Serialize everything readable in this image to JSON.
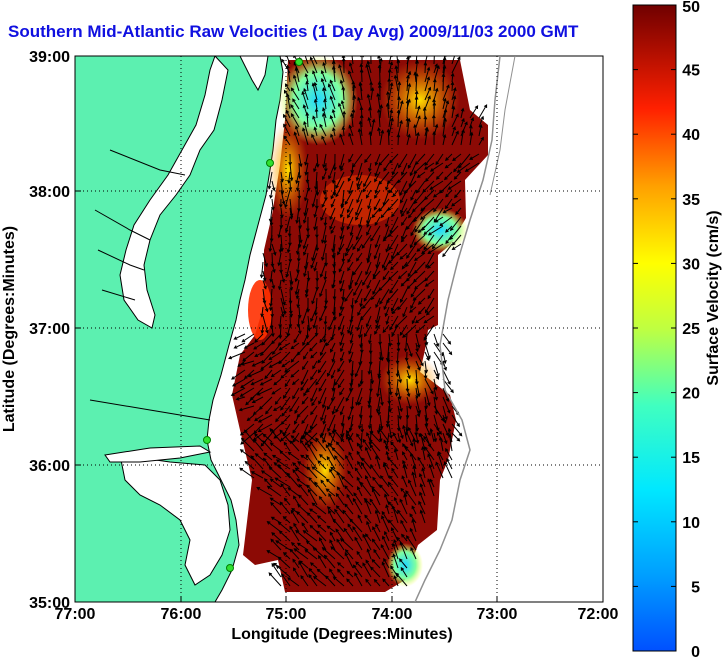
{
  "title": "Southern Mid-Atlantic Raw Velocities (1 Day Avg) 2009/11/03 2000 GMT",
  "map": {
    "xlabel": "Longitude (Degrees:Minutes)",
    "ylabel": "Latitude (Degrees:Minutes)",
    "x_ticks": [
      "77:00",
      "76:00",
      "75:00",
      "74:00",
      "73:00",
      "72:00"
    ],
    "y_ticks": [
      "39:00",
      "38:00",
      "37:00",
      "36:00",
      "35:00"
    ],
    "land_color": "#5cf0b0",
    "grid": "dotted",
    "markers": "green station dots on coast"
  },
  "colorbar": {
    "label": "Surface Velocity (cm/s)",
    "ticks": [
      "50",
      "45",
      "40",
      "35",
      "30",
      "25",
      "20",
      "15",
      "10",
      "5",
      "0"
    ],
    "min": 0,
    "max": 50,
    "colormap": "jet"
  }
}
